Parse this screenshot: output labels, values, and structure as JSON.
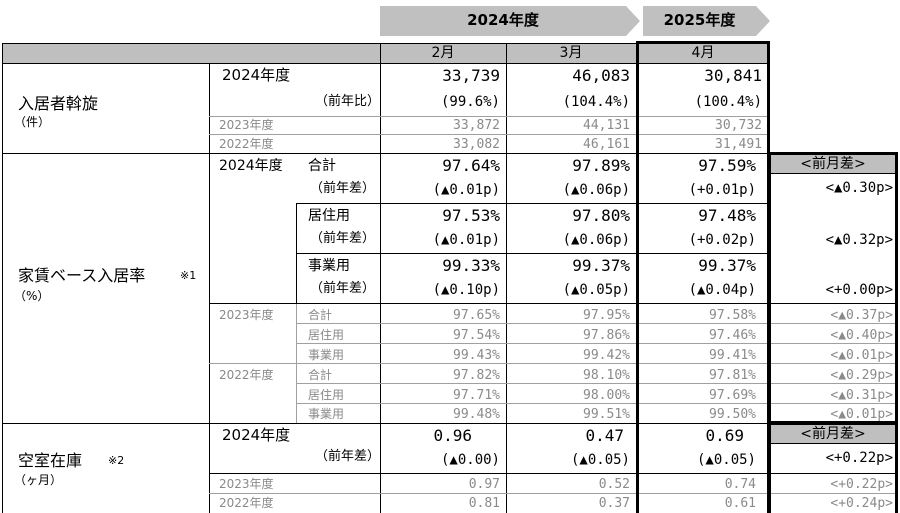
{
  "header": {
    "fy2024_label": "2024年度",
    "fy2025_label": "2025年度",
    "months": [
      "2月",
      "3月",
      "4月"
    ],
    "zenkitsu_label": "<前月差>"
  },
  "colors": {
    "banner_gray": "#c0c0c0",
    "header_gray": "#bfbfbf",
    "line_gray": "#a0a0a0",
    "secondary_text": "#8a8a8a"
  },
  "s1": {
    "title": "入居者斡旋",
    "unit": "（件）",
    "year": "2024年度",
    "yoy_label": "（前年比）",
    "values": [
      "33,739",
      "46,083",
      "30,841"
    ],
    "yoy": [
      "(99.6%)",
      "(104.4%)",
      "(100.4%)"
    ],
    "prev": [
      {
        "year": "2023年度",
        "values": [
          "33,872",
          "44,131",
          "30,732"
        ]
      },
      {
        "year": "2022年度",
        "values": [
          "33,082",
          "46,161",
          "31,491"
        ]
      }
    ]
  },
  "s2": {
    "title": "家賃ベース入居率",
    "note": "※1",
    "unit": "（%）",
    "year": "2024年度",
    "diff_label": "（前年差）",
    "rows": [
      {
        "label": "合計",
        "values": [
          "97.64%",
          "97.89%",
          "97.59%"
        ],
        "diffs": [
          "(▲0.01p)",
          "(▲0.06p)",
          "(+0.01p)"
        ],
        "mom": "<▲0.30p>"
      },
      {
        "label": "居住用",
        "values": [
          "97.53%",
          "97.80%",
          "97.48%"
        ],
        "diffs": [
          "(▲0.01p)",
          "(▲0.06p)",
          "(+0.02p)"
        ],
        "mom": "<▲0.32p>"
      },
      {
        "label": "事業用",
        "values": [
          "99.33%",
          "99.37%",
          "99.37%"
        ],
        "diffs": [
          "(▲0.10p)",
          "(▲0.05p)",
          "(▲0.04p)"
        ],
        "mom": "<+0.00p>"
      }
    ],
    "prev": [
      {
        "year": "2023年度",
        "rows": [
          {
            "label": "合計",
            "values": [
              "97.65%",
              "97.95%",
              "97.58%"
            ],
            "mom": "<▲0.37p>"
          },
          {
            "label": "居住用",
            "values": [
              "97.54%",
              "97.86%",
              "97.46%"
            ],
            "mom": "<▲0.40p>"
          },
          {
            "label": "事業用",
            "values": [
              "99.43%",
              "99.42%",
              "99.41%"
            ],
            "mom": "<▲0.01p>"
          }
        ]
      },
      {
        "year": "2022年度",
        "rows": [
          {
            "label": "合計",
            "values": [
              "97.82%",
              "98.10%",
              "97.81%"
            ],
            "mom": "<▲0.29p>"
          },
          {
            "label": "居住用",
            "values": [
              "97.71%",
              "98.00%",
              "97.69%"
            ],
            "mom": "<▲0.31p>"
          },
          {
            "label": "事業用",
            "values": [
              "99.48%",
              "99.51%",
              "99.50%"
            ],
            "mom": "<▲0.01p>"
          }
        ]
      }
    ]
  },
  "s3": {
    "title": "空室在庫",
    "note": "※2",
    "unit": "（ヶ月）",
    "year": "2024年度",
    "diff_label": "（前年差）",
    "values": [
      "0.96",
      "0.47",
      "0.69"
    ],
    "diffs": [
      "(▲0.00)",
      "(▲0.05)",
      "(▲0.05)"
    ],
    "mom": "<+0.22p>",
    "prev": [
      {
        "year": "2023年度",
        "values": [
          "0.97",
          "0.52",
          "0.74"
        ],
        "mom": "<+0.22p>"
      },
      {
        "year": "2022年度",
        "values": [
          "0.81",
          "0.37",
          "0.61"
        ],
        "mom": "<+0.24p>"
      }
    ]
  }
}
